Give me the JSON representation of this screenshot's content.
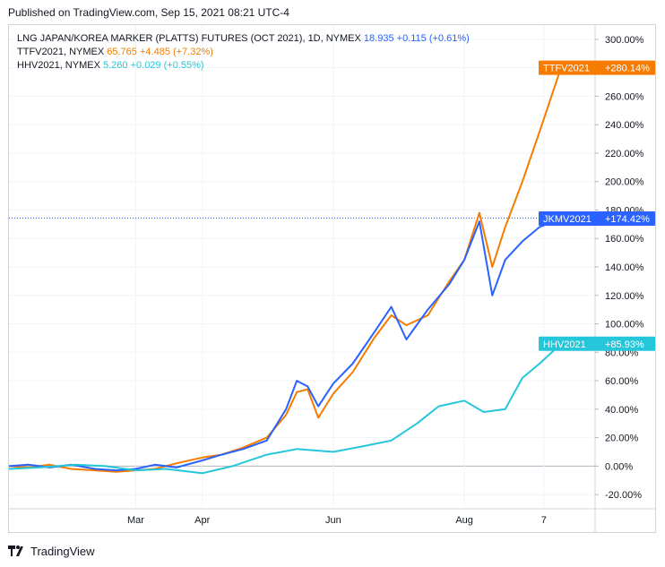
{
  "header": {
    "published": "Published on TradingView.com, Sep 15, 2021 08:21 UTC-4"
  },
  "footer": {
    "brand": "TradingView"
  },
  "legend": [
    {
      "symbol": "LNG JAPAN/KOREA MARKER (PLATTS) FUTURES (OCT 2021), 1D, NYMEX",
      "price": "18.935",
      "change": "+0.115 (+0.61%)",
      "color": "#2962ff"
    },
    {
      "symbol": "TTFV2021, NYMEX",
      "price": "65.765",
      "change": "+4.485 (+7.32%)",
      "color": "#f57c00"
    },
    {
      "symbol": "HHV2021, NYMEX",
      "price": "5.260",
      "change": "+0.029 (+0.55%)",
      "color": "#26c6da"
    }
  ],
  "chart_data": {
    "type": "line",
    "y_unit": "%",
    "ylim": [
      -30,
      310
    ],
    "yticks": [
      "300.00%",
      "280.00%",
      "260.00%",
      "240.00%",
      "220.00%",
      "200.00%",
      "180.00%",
      "160.00%",
      "140.00%",
      "120.00%",
      "100.00%",
      "80.00%",
      "60.00%",
      "40.00%",
      "20.00%",
      "0.00%",
      "-20.00%"
    ],
    "ytick_values": [
      300,
      280,
      260,
      240,
      220,
      200,
      180,
      160,
      140,
      120,
      100,
      80,
      60,
      40,
      20,
      0,
      -20
    ],
    "xlim": [
      "2021-01-01",
      "2021-09-15"
    ],
    "xticks": [
      {
        "label": "Mar",
        "date": "2021-03-01"
      },
      {
        "label": "Apr",
        "date": "2021-04-01"
      },
      {
        "label": "Jun",
        "date": "2021-06-01"
      },
      {
        "label": "Aug",
        "date": "2021-08-01"
      },
      {
        "label": "7",
        "date": "2021-09-07"
      }
    ],
    "series": [
      {
        "name": "TTFV2021",
        "color": "#f57c00",
        "last_label": "+280.14%",
        "points": [
          [
            "2021-01-01",
            0
          ],
          [
            "2021-01-10",
            -1
          ],
          [
            "2021-01-20",
            1
          ],
          [
            "2021-01-30",
            -2
          ],
          [
            "2021-02-10",
            -3
          ],
          [
            "2021-02-20",
            -4
          ],
          [
            "2021-03-01",
            -3
          ],
          [
            "2021-03-10",
            -2
          ],
          [
            "2021-03-20",
            2
          ],
          [
            "2021-04-01",
            6
          ],
          [
            "2021-04-10",
            8
          ],
          [
            "2021-04-20",
            13
          ],
          [
            "2021-05-01",
            20
          ],
          [
            "2021-05-10",
            36
          ],
          [
            "2021-05-15",
            52
          ],
          [
            "2021-05-20",
            54
          ],
          [
            "2021-05-25",
            34
          ],
          [
            "2021-06-01",
            51
          ],
          [
            "2021-06-10",
            66
          ],
          [
            "2021-06-20",
            90
          ],
          [
            "2021-06-28",
            106
          ],
          [
            "2021-07-05",
            99
          ],
          [
            "2021-07-15",
            106
          ],
          [
            "2021-07-25",
            130
          ],
          [
            "2021-08-01",
            145
          ],
          [
            "2021-08-08",
            178
          ],
          [
            "2021-08-14",
            140
          ],
          [
            "2021-08-20",
            168
          ],
          [
            "2021-08-28",
            200
          ],
          [
            "2021-09-05",
            235
          ],
          [
            "2021-09-15",
            280
          ]
        ]
      },
      {
        "name": "JKMV2021",
        "color": "#2962ff",
        "last_label": "+174.42%",
        "points": [
          [
            "2021-01-01",
            0
          ],
          [
            "2021-01-10",
            1
          ],
          [
            "2021-01-20",
            -1
          ],
          [
            "2021-01-30",
            1
          ],
          [
            "2021-02-10",
            -2
          ],
          [
            "2021-02-20",
            -3
          ],
          [
            "2021-03-01",
            -2
          ],
          [
            "2021-03-10",
            1
          ],
          [
            "2021-03-20",
            -1
          ],
          [
            "2021-04-01",
            4
          ],
          [
            "2021-04-10",
            8
          ],
          [
            "2021-04-20",
            12
          ],
          [
            "2021-05-01",
            18
          ],
          [
            "2021-05-10",
            40
          ],
          [
            "2021-05-15",
            60
          ],
          [
            "2021-05-20",
            56
          ],
          [
            "2021-05-25",
            42
          ],
          [
            "2021-06-01",
            58
          ],
          [
            "2021-06-10",
            72
          ],
          [
            "2021-06-20",
            94
          ],
          [
            "2021-06-28",
            112
          ],
          [
            "2021-07-05",
            89
          ],
          [
            "2021-07-15",
            110
          ],
          [
            "2021-07-25",
            128
          ],
          [
            "2021-08-01",
            145
          ],
          [
            "2021-08-08",
            172
          ],
          [
            "2021-08-14",
            120
          ],
          [
            "2021-08-20",
            145
          ],
          [
            "2021-08-28",
            158
          ],
          [
            "2021-09-05",
            168
          ],
          [
            "2021-09-15",
            174
          ]
        ]
      },
      {
        "name": "HHV2021",
        "color": "#26c6da",
        "last_label": "+85.93%",
        "points": [
          [
            "2021-01-01",
            -2
          ],
          [
            "2021-01-15",
            -1
          ],
          [
            "2021-02-01",
            1
          ],
          [
            "2021-02-15",
            0
          ],
          [
            "2021-03-01",
            -3
          ],
          [
            "2021-03-15",
            -2
          ],
          [
            "2021-04-01",
            -5
          ],
          [
            "2021-04-15",
            0
          ],
          [
            "2021-05-01",
            8
          ],
          [
            "2021-05-15",
            12
          ],
          [
            "2021-06-01",
            10
          ],
          [
            "2021-06-15",
            14
          ],
          [
            "2021-06-28",
            18
          ],
          [
            "2021-07-10",
            30
          ],
          [
            "2021-07-20",
            42
          ],
          [
            "2021-08-01",
            46
          ],
          [
            "2021-08-10",
            38
          ],
          [
            "2021-08-20",
            40
          ],
          [
            "2021-08-28",
            62
          ],
          [
            "2021-09-05",
            72
          ],
          [
            "2021-09-15",
            86
          ]
        ]
      }
    ],
    "price_line": {
      "value": 174.42,
      "color": "#2962ff"
    }
  }
}
